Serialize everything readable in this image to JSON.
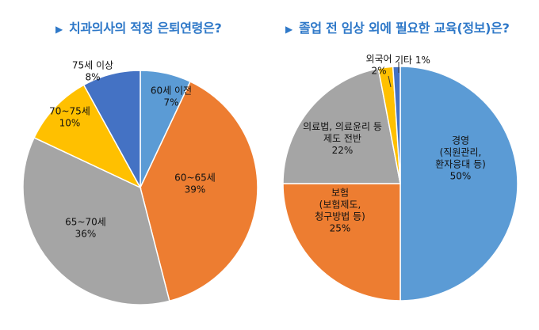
{
  "chart_data": [
    {
      "type": "pie",
      "title": "치과의사의 적정 은퇴연령은?",
      "slices": [
        {
          "label": "60세 이전",
          "value": 7,
          "value_label": "7%",
          "color": "#5b9bd5"
        },
        {
          "label": "60~65세",
          "value": 39,
          "value_label": "39%",
          "color": "#ed7d31"
        },
        {
          "label": "65~70세",
          "value": 36,
          "value_label": "36%",
          "color": "#a5a5a5"
        },
        {
          "label": "70~75세",
          "value": 10,
          "value_label": "10%",
          "color": "#ffc000"
        },
        {
          "label": "75세 이상",
          "value": 8,
          "value_label": "8%",
          "color": "#4472c4"
        }
      ]
    },
    {
      "type": "pie",
      "title": "졸업 전 임상 외에 필요한 교육(정보)은?",
      "slices": [
        {
          "label": "경영\n(직원관리,\n환자응대 등)",
          "value": 50,
          "value_label": "50%",
          "color": "#5b9bd5"
        },
        {
          "label": "보험\n(보험제도,\n청구방법 등)",
          "value": 25,
          "value_label": "25%",
          "color": "#ed7d31"
        },
        {
          "label": "의료법, 의료윤리 등\n제도 전반",
          "value": 22,
          "value_label": "22%",
          "color": "#a5a5a5"
        },
        {
          "label": "외국어",
          "value": 2,
          "value_label": "2%",
          "color": "#ffc000"
        },
        {
          "label": "기타",
          "value": 1,
          "value_label": "1%",
          "color": "#4472c4"
        }
      ]
    }
  ],
  "ui": {
    "title_marker": "▶"
  }
}
